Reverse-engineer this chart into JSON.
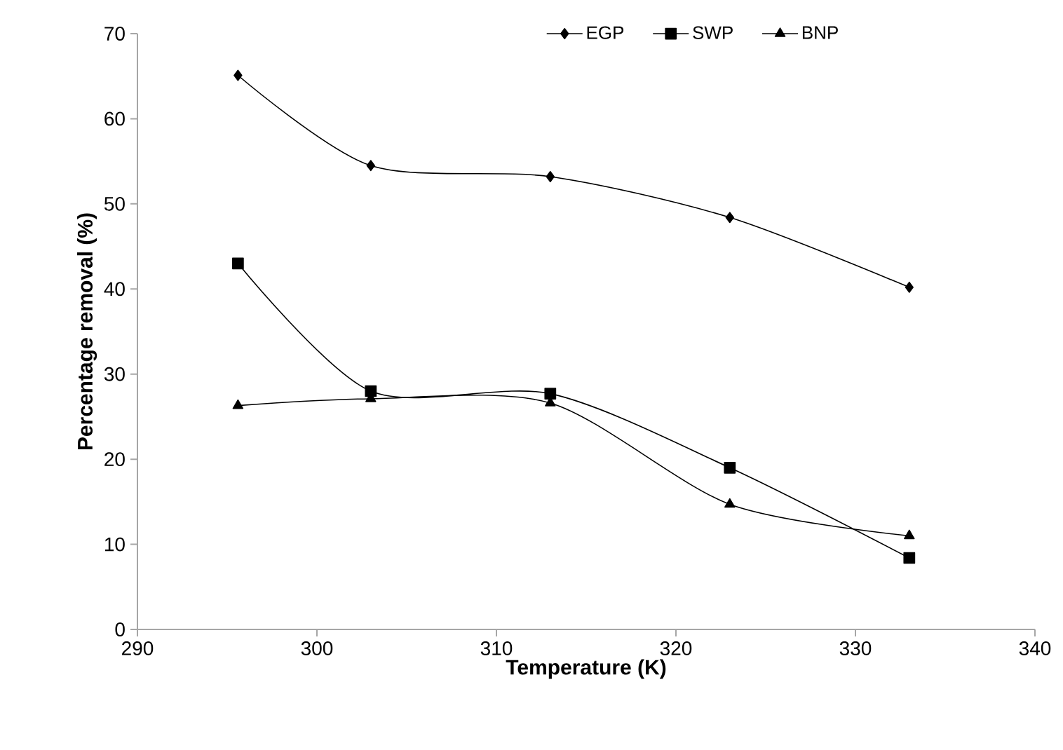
{
  "chart_data": {
    "type": "line",
    "xlabel": "Temperature (K)",
    "ylabel": "Percentage removal (%)",
    "x": [
      295.6,
      303,
      313,
      323,
      333
    ],
    "series": [
      {
        "name": "EGP",
        "color": "#000000",
        "marker": "diamond",
        "values": [
          65.1,
          54.5,
          53.2,
          48.4,
          40.2
        ]
      },
      {
        "name": "SWP",
        "color": "#000000",
        "marker": "square",
        "values": [
          43.0,
          28.0,
          27.7,
          19.0,
          8.4
        ]
      },
      {
        "name": "BNP",
        "color": "#000000",
        "marker": "triangle",
        "values": [
          26.3,
          27.1,
          26.6,
          14.7,
          11.0
        ]
      }
    ],
    "xlim": [
      290,
      340
    ],
    "xticks": [
      290,
      300,
      310,
      320,
      330,
      340
    ],
    "ylim": [
      0,
      70
    ],
    "yticks": [
      0,
      10,
      20,
      30,
      40,
      50,
      60,
      70
    ],
    "grid": false,
    "legend": "top",
    "line_style": "solid"
  }
}
